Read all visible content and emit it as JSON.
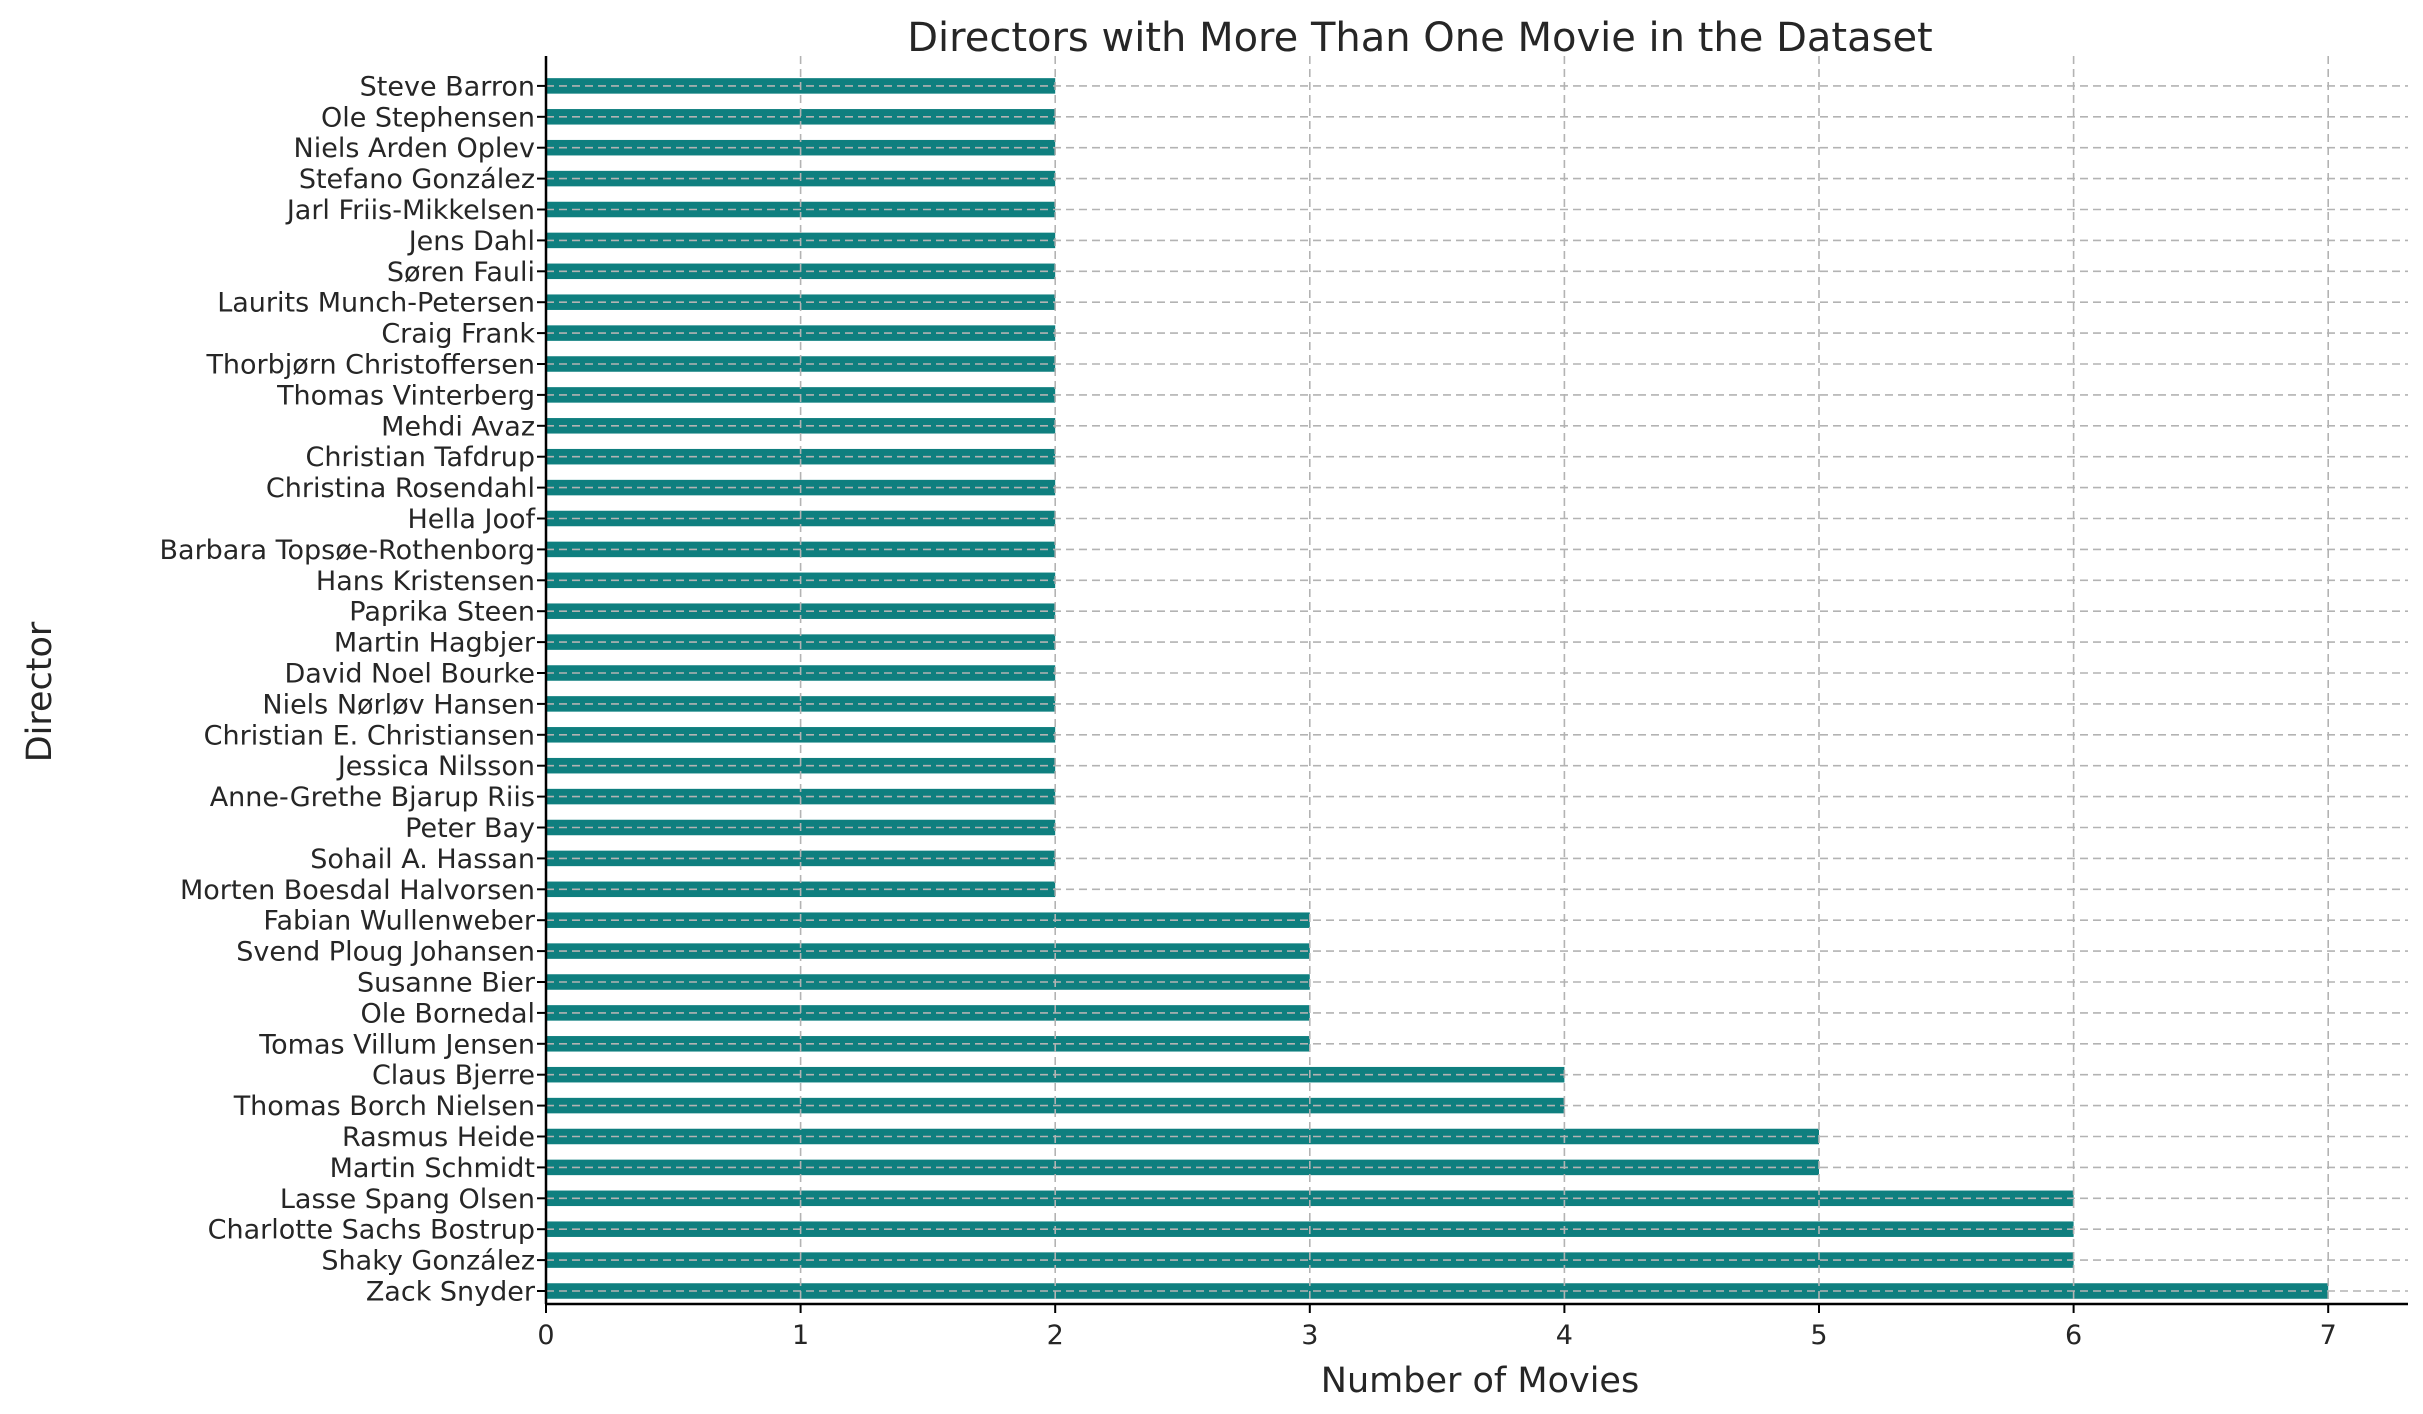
{
  "chart_data": {
    "type": "bar",
    "orientation": "horizontal",
    "title": "Directors with More Than One Movie in the Dataset",
    "xlabel": "Number of Movies",
    "ylabel": "Director",
    "xlim": [
      0,
      7.35
    ],
    "xticks": [
      "0",
      "1",
      "2",
      "3",
      "4",
      "5",
      "6",
      "7"
    ],
    "grid": true,
    "bar_color": "#0f7f7f",
    "categories": [
      "Zack Snyder",
      "Shaky González",
      "Charlotte Sachs Bostrup",
      "Lasse Spang Olsen",
      "Martin Schmidt",
      "Rasmus Heide",
      "Thomas Borch Nielsen",
      "Claus Bjerre",
      "Tomas Villum Jensen",
      "Ole Bornedal",
      "Susanne Bier",
      "Svend Ploug Johansen",
      "Fabian Wullenweber",
      "Morten Boesdal Halvorsen",
      "Sohail A. Hassan",
      "Peter Bay",
      "Anne-Grethe Bjarup Riis",
      "Jessica Nilsson",
      "Christian E. Christiansen",
      "Niels Nørløv Hansen",
      "David Noel Bourke",
      "Martin Hagbjer",
      "Paprika Steen",
      "Hans Kristensen",
      "Barbara Topsøe-Rothenborg",
      "Hella Joof",
      "Christina Rosendahl",
      "Christian Tafdrup",
      "Mehdi Avaz",
      "Thomas Vinterberg",
      "Thorbjørn Christoffersen",
      "Craig Frank",
      "Laurits Munch-Petersen",
      "Søren Fauli",
      "Jens Dahl",
      "Jarl Friis-Mikkelsen",
      "Stefano González",
      "Niels Arden Oplev",
      "Ole Stephensen",
      "Steve Barron"
    ],
    "values": [
      7,
      6,
      6,
      6,
      5,
      5,
      4,
      4,
      3,
      3,
      3,
      3,
      3,
      2,
      2,
      2,
      2,
      2,
      2,
      2,
      2,
      2,
      2,
      2,
      2,
      2,
      2,
      2,
      2,
      2,
      2,
      2,
      2,
      2,
      2,
      2,
      2,
      2,
      2,
      2
    ]
  }
}
